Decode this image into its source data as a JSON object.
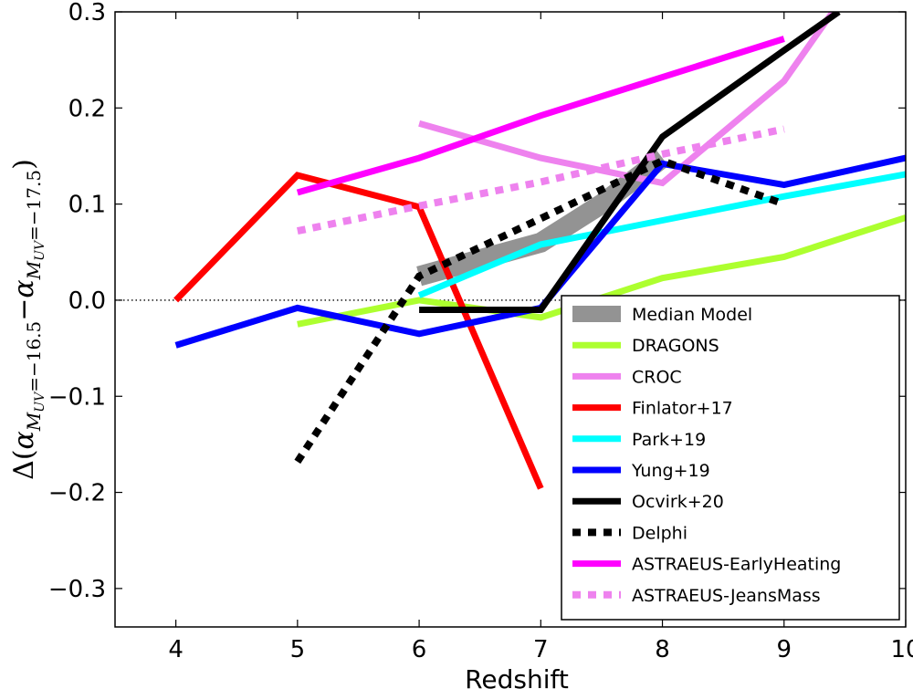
{
  "chart_data": {
    "type": "line",
    "title": "",
    "xlabel": "Redshift",
    "ylabel": {
      "delta": "Δ(",
      "alpha": "α",
      "sub_left": "M",
      "sub_left_sub": "UV",
      "sub_left_val": "=−16.5",
      "minus": "−",
      "sub_right_val": "=−17.5",
      "close": ")"
    },
    "xlim": [
      3.5,
      10
    ],
    "ylim": [
      -0.34,
      0.3
    ],
    "xticks": [
      4,
      5,
      6,
      7,
      8,
      9,
      10
    ],
    "xtick_labels": [
      "4",
      "5",
      "6",
      "7",
      "8",
      "9",
      "10"
    ],
    "yticks": [
      -0.3,
      -0.2,
      -0.1,
      0.0,
      0.1,
      0.2,
      0.3
    ],
    "ytick_labels": [
      "−0.3",
      "−0.2",
      "−0.1",
      "0.0",
      "0.1",
      "0.2",
      "0.3"
    ],
    "reference_line": {
      "y": 0.0,
      "style": "dotted"
    },
    "legend_position": "lower-right",
    "series": [
      {
        "name": "Median Model",
        "color": "#808080",
        "style": "band",
        "x": [
          6,
          7,
          7.5,
          8
        ],
        "y": [
          0.025,
          0.06,
          0.1,
          0.148
        ]
      },
      {
        "name": "DRAGONS",
        "color": "#adff2f",
        "style": "solid",
        "x": [
          5,
          6,
          7,
          8,
          9,
          10
        ],
        "y": [
          -0.025,
          0.0,
          -0.018,
          0.023,
          0.045,
          0.086
        ]
      },
      {
        "name": "CROC",
        "color": "#ee82ee",
        "style": "solid",
        "x": [
          6,
          7,
          8,
          9,
          9.4
        ],
        "y": [
          0.184,
          0.148,
          0.122,
          0.228,
          0.3
        ]
      },
      {
        "name": "Finlator+17",
        "color": "#ff0000",
        "style": "solid",
        "x": [
          4,
          5,
          6,
          7
        ],
        "y": [
          0.0,
          0.13,
          0.097,
          -0.196
        ]
      },
      {
        "name": "Park+19",
        "color": "#00ffff",
        "style": "solid",
        "x": [
          6,
          7,
          8,
          9,
          10
        ],
        "y": [
          0.005,
          0.058,
          0.083,
          0.108,
          0.131
        ]
      },
      {
        "name": "Yung+19",
        "color": "#0000ff",
        "style": "solid",
        "x": [
          4,
          5,
          6,
          7,
          8,
          9,
          10
        ],
        "y": [
          -0.047,
          -0.008,
          -0.035,
          -0.008,
          0.142,
          0.12,
          0.148
        ]
      },
      {
        "name": "Ocvirk+20",
        "color": "#000000",
        "style": "solid",
        "x": [
          6,
          7,
          8,
          9,
          9.45
        ],
        "y": [
          -0.01,
          -0.01,
          0.17,
          0.26,
          0.3
        ]
      },
      {
        "name": "Delphi",
        "color": "#000000",
        "style": "dotted",
        "x": [
          5,
          6,
          7,
          8,
          9
        ],
        "y": [
          -0.168,
          0.025,
          0.085,
          0.145,
          0.1
        ]
      },
      {
        "name": "ASTRAEUS-EarlyHeating",
        "color": "#ff00ff",
        "style": "solid",
        "x": [
          5,
          6,
          7,
          8,
          9
        ],
        "y": [
          0.112,
          0.148,
          0.192,
          0.232,
          0.272
        ]
      },
      {
        "name": "ASTRAEUS-JeansMass",
        "color": "#ee82ee",
        "style": "dotted",
        "x": [
          5,
          6,
          7,
          8,
          9
        ],
        "y": [
          0.072,
          0.098,
          0.123,
          0.152,
          0.178
        ]
      }
    ]
  }
}
